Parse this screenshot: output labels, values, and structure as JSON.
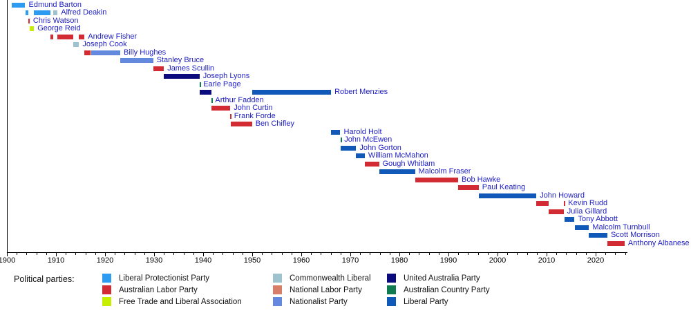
{
  "legend": {
    "label": "Political parties:",
    "columns": [
      [
        "Liberal Protectionist Party",
        "Australian Labor Party",
        "Free Trade and Liberal Association"
      ],
      [
        "Commonwealth Liberal",
        "National Labor Party",
        "Nationalist Party"
      ],
      [
        "United Australia Party",
        "Australian Country Party",
        "Liberal Party"
      ]
    ]
  },
  "parties": {
    "Liberal Protectionist Party": "#2d9bf0",
    "Australian Labor Party": "#d32b33",
    "Free Trade and Liberal Association": "#c6ef00",
    "Commonwealth Liberal": "#9ec3cf",
    "National Labor Party": "#d87e68",
    "Nationalist Party": "#6488dd",
    "United Australia Party": "#0b0b7d",
    "Australian Country Party": "#0e7b50",
    "Liberal Party": "#1159b8"
  },
  "chart_data": {
    "type": "bar",
    "subtype": "gantt-timeline",
    "xlabel": "",
    "ylabel": "",
    "x_axis": {
      "min": 1900,
      "max": 2026.5,
      "major_tick_interval": 10,
      "minor_tick_interval": 2,
      "major_ticks": [
        1900,
        1910,
        1920,
        1930,
        1940,
        1950,
        1960,
        1970,
        1980,
        1990,
        2000,
        2010,
        2020
      ]
    },
    "grid": false,
    "legend_position": "bottom",
    "prime_ministers": [
      {
        "name": "Edmund Barton",
        "terms": [
          {
            "party": "Liberal Protectionist Party",
            "start": 1901.0,
            "end": 1903.73
          }
        ]
      },
      {
        "name": "Alfred Deakin",
        "terms": [
          {
            "party": "Liberal Protectionist Party",
            "start": 1903.73,
            "end": 1904.32
          },
          {
            "party": "Liberal Protectionist Party",
            "start": 1905.52,
            "end": 1908.87
          },
          {
            "party": "Commonwealth Liberal",
            "start": 1909.42,
            "end": 1910.32
          }
        ]
      },
      {
        "name": "Chris Watson",
        "terms": [
          {
            "party": "Australian Labor Party",
            "start": 1904.32,
            "end": 1904.64
          }
        ]
      },
      {
        "name": "George Reid",
        "terms": [
          {
            "party": "Free Trade and Liberal Association",
            "start": 1904.64,
            "end": 1905.52
          }
        ]
      },
      {
        "name": "Andrew Fisher",
        "terms": [
          {
            "party": "Australian Labor Party",
            "start": 1908.87,
            "end": 1909.42
          },
          {
            "party": "Australian Labor Party",
            "start": 1910.32,
            "end": 1913.48
          },
          {
            "party": "Australian Labor Party",
            "start": 1914.71,
            "end": 1915.82
          }
        ]
      },
      {
        "name": "Joseph Cook",
        "terms": [
          {
            "party": "Commonwealth Liberal",
            "start": 1913.48,
            "end": 1914.71
          }
        ]
      },
      {
        "name": "Billy Hughes",
        "terms": [
          {
            "party": "Australian Labor Party",
            "start": 1915.82,
            "end": 1916.87
          },
          {
            "party": "National Labor Party",
            "start": 1916.87,
            "end": 1917.13
          },
          {
            "party": "Nationalist Party",
            "start": 1917.13,
            "end": 1923.1
          }
        ]
      },
      {
        "name": "Stanley Bruce",
        "terms": [
          {
            "party": "Nationalist Party",
            "start": 1923.1,
            "end": 1929.8
          }
        ]
      },
      {
        "name": "James Scullin",
        "terms": [
          {
            "party": "Australian Labor Party",
            "start": 1929.8,
            "end": 1932.0
          }
        ]
      },
      {
        "name": "Joseph Lyons",
        "terms": [
          {
            "party": "United Australia Party",
            "start": 1932.0,
            "end": 1939.27
          }
        ]
      },
      {
        "name": "Earle Page",
        "terms": [
          {
            "party": "Australian Country Party",
            "start": 1939.27,
            "end": 1939.32
          }
        ]
      },
      {
        "name": "Robert Menzies",
        "terms": [
          {
            "party": "United Australia Party",
            "start": 1939.32,
            "end": 1941.66
          },
          {
            "party": "Liberal Party",
            "start": 1949.96,
            "end": 1966.07
          }
        ]
      },
      {
        "name": "Arthur Fadden",
        "terms": [
          {
            "party": "Australian Country Party",
            "start": 1941.66,
            "end": 1941.75
          }
        ]
      },
      {
        "name": "John Curtin",
        "terms": [
          {
            "party": "Australian Labor Party",
            "start": 1941.75,
            "end": 1945.54
          }
        ]
      },
      {
        "name": "Frank Forde",
        "terms": [
          {
            "party": "Australian Labor Party",
            "start": 1945.54,
            "end": 1945.6
          }
        ]
      },
      {
        "name": "Ben Chifley",
        "terms": [
          {
            "party": "Australian Labor Party",
            "start": 1945.6,
            "end": 1949.96
          }
        ]
      },
      {
        "name": "Harold Holt",
        "terms": [
          {
            "party": "Liberal Party",
            "start": 1966.07,
            "end": 1967.96
          }
        ]
      },
      {
        "name": "John McEwen",
        "terms": [
          {
            "party": "Australian Country Party",
            "start": 1967.96,
            "end": 1968.05
          }
        ]
      },
      {
        "name": "John Gorton",
        "terms": [
          {
            "party": "Liberal Party",
            "start": 1968.05,
            "end": 1971.19
          }
        ]
      },
      {
        "name": "William McMahon",
        "terms": [
          {
            "party": "Liberal Party",
            "start": 1971.19,
            "end": 1972.94
          }
        ]
      },
      {
        "name": "Gough Whitlam",
        "terms": [
          {
            "party": "Australian Labor Party",
            "start": 1972.94,
            "end": 1975.85
          }
        ]
      },
      {
        "name": "Malcolm Fraser",
        "terms": [
          {
            "party": "Liberal Party",
            "start": 1975.85,
            "end": 1983.19
          }
        ]
      },
      {
        "name": "Bob Hawke",
        "terms": [
          {
            "party": "Australian Labor Party",
            "start": 1983.19,
            "end": 1991.97
          }
        ]
      },
      {
        "name": "Paul Keating",
        "terms": [
          {
            "party": "Australian Labor Party",
            "start": 1991.97,
            "end": 1996.17
          }
        ]
      },
      {
        "name": "John Howard",
        "terms": [
          {
            "party": "Liberal Party",
            "start": 1996.17,
            "end": 2007.92
          }
        ]
      },
      {
        "name": "Kevin Rudd",
        "terms": [
          {
            "party": "Australian Labor Party",
            "start": 2007.92,
            "end": 2010.48
          },
          {
            "party": "Australian Labor Party",
            "start": 2013.49,
            "end": 2013.71
          }
        ]
      },
      {
        "name": "Julia Gillard",
        "terms": [
          {
            "party": "Australian Labor Party",
            "start": 2010.48,
            "end": 2013.49
          }
        ]
      },
      {
        "name": "Tony Abbott",
        "terms": [
          {
            "party": "Liberal Party",
            "start": 2013.71,
            "end": 2015.71
          }
        ]
      },
      {
        "name": "Malcolm Turnbull",
        "terms": [
          {
            "party": "Liberal Party",
            "start": 2015.71,
            "end": 2018.65
          }
        ]
      },
      {
        "name": "Scott Morrison",
        "terms": [
          {
            "party": "Liberal Party",
            "start": 2018.65,
            "end": 2022.4
          }
        ]
      },
      {
        "name": "Anthony Albanese",
        "terms": [
          {
            "party": "Australian Labor Party",
            "start": 2022.4,
            "end": 2025.9
          }
        ]
      }
    ]
  }
}
